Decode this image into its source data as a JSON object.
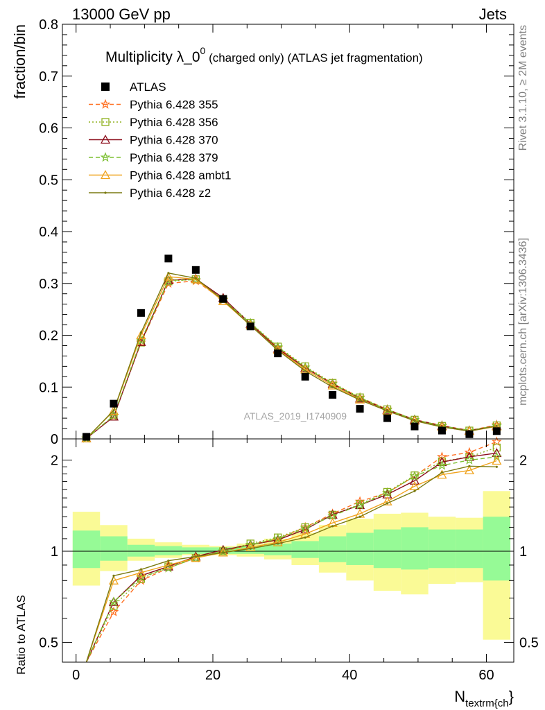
{
  "header": {
    "energy_label": "13000 GeV pp",
    "category_label": "Jets"
  },
  "side": {
    "rivet_label": "Rivet 3.1.10, ≥ 2M events",
    "source_label": "mcplots.cern.ch [arXiv:1306.3436]"
  },
  "analysis_label": "ATLAS_2019_I1740909",
  "colors": {
    "p355": "#ff6e1f",
    "p356": "#8fb01e",
    "p370": "#8b0c1a",
    "p379": "#7cbf30",
    "ambt1": "#f0a31e",
    "z2": "#7a7a10",
    "band_inner": "#96fa96",
    "band_outer": "#fafa96"
  },
  "chart_data": [
    {
      "panel": "main",
      "type": "line",
      "title_main": "Multiplicity λ_0",
      "title_sup": "0",
      "title_rest": " (charged only) (ATLAS jet fragmentation)",
      "ylabel": "fraction/bin",
      "xlim": [
        -2,
        64
      ],
      "ylim": [
        0,
        0.8
      ],
      "x_ticks": [
        0,
        20,
        40,
        60
      ],
      "y_ticks": [
        "0",
        "0.1",
        "0.2",
        "0.3",
        "0.4",
        "0.5",
        "0.6",
        "0.7",
        "0.8"
      ],
      "legend_position": "top-left",
      "x": [
        1.5,
        5.5,
        9.5,
        13.5,
        17.5,
        21.5,
        25.5,
        29.5,
        33.5,
        37.5,
        41.5,
        45.5,
        49.5,
        53.5,
        57.5,
        61.5
      ],
      "data": {
        "name": "ATLAS",
        "values": [
          0.004,
          0.068,
          0.243,
          0.348,
          0.326,
          0.27,
          0.217,
          0.165,
          0.12,
          0.085,
          0.058,
          0.04,
          0.024,
          0.016,
          0.009,
          0.015
        ]
      },
      "series": [
        {
          "key": "p355",
          "name": "Pythia 6.428 355",
          "style": "dashed",
          "marker": "star",
          "values": [
            0.001,
            0.044,
            0.186,
            0.3,
            0.305,
            0.268,
            0.223,
            0.176,
            0.138,
            0.107,
            0.08,
            0.057,
            0.037,
            0.026,
            0.016,
            0.027
          ]
        },
        {
          "key": "p356",
          "name": "Pythia 6.428 356",
          "style": "dotted",
          "marker": "square",
          "values": [
            0.001,
            0.043,
            0.186,
            0.304,
            0.308,
            0.27,
            0.224,
            0.178,
            0.14,
            0.108,
            0.08,
            0.057,
            0.037,
            0.025,
            0.016,
            0.026
          ]
        },
        {
          "key": "p370",
          "name": "Pythia 6.428 370",
          "style": "solid",
          "marker": "triangle",
          "values": [
            0.001,
            0.043,
            0.187,
            0.306,
            0.309,
            0.272,
            0.222,
            0.174,
            0.137,
            0.106,
            0.078,
            0.056,
            0.037,
            0.025,
            0.016,
            0.025
          ]
        },
        {
          "key": "p379",
          "name": "Pythia 6.428 379",
          "style": "dashed",
          "marker": "star",
          "values": [
            0.001,
            0.045,
            0.19,
            0.306,
            0.307,
            0.269,
            0.223,
            0.177,
            0.138,
            0.106,
            0.079,
            0.056,
            0.037,
            0.025,
            0.016,
            0.025
          ]
        },
        {
          "key": "ambt1",
          "name": "Pythia 6.428 ambt1",
          "style": "solid",
          "marker": "triangle",
          "values": [
            0.001,
            0.054,
            0.2,
            0.313,
            0.308,
            0.266,
            0.219,
            0.172,
            0.134,
            0.103,
            0.076,
            0.054,
            0.035,
            0.023,
            0.015,
            0.024
          ]
        },
        {
          "key": "z2",
          "name": "Pythia 6.428 z2",
          "style": "solid",
          "marker": "dot",
          "values": [
            0.001,
            0.055,
            0.205,
            0.32,
            0.31,
            0.268,
            0.219,
            0.171,
            0.131,
            0.1,
            0.075,
            0.054,
            0.035,
            0.023,
            0.015,
            0.025
          ]
        }
      ]
    },
    {
      "panel": "ratio",
      "type": "line",
      "ylabel": "Ratio to ATLAS",
      "xlabel_main": "N",
      "xlabel_sub": "textrm{ch",
      "xlabel_end": "}",
      "yscale": "log",
      "xlim": [
        -2,
        64
      ],
      "ylim": [
        0.43,
        2.35
      ],
      "y_ticks": [
        "0.5",
        "1",
        "2"
      ],
      "x_ticks": [
        "0",
        "20",
        "40",
        "60"
      ],
      "x": [
        1.5,
        5.5,
        9.5,
        13.5,
        17.5,
        21.5,
        25.5,
        29.5,
        33.5,
        37.5,
        41.5,
        45.5,
        49.5,
        53.5,
        57.5,
        61.5
      ],
      "bin_edges": [
        -0.5,
        3.5,
        7.5,
        11.5,
        15.5,
        19.5,
        23.5,
        27.5,
        31.5,
        35.5,
        39.5,
        43.5,
        47.5,
        51.5,
        55.5,
        59.5,
        63.5
      ],
      "band_inner": [
        [
          0.88,
          1.17
        ],
        [
          0.93,
          1.12
        ],
        [
          0.96,
          1.05
        ],
        [
          0.97,
          1.04
        ],
        [
          0.98,
          1.03
        ],
        [
          0.98,
          1.03
        ],
        [
          0.98,
          1.04
        ],
        [
          0.97,
          1.06
        ],
        [
          0.95,
          1.08
        ],
        [
          0.92,
          1.12
        ],
        [
          0.9,
          1.15
        ],
        [
          0.88,
          1.18
        ],
        [
          0.87,
          1.2
        ],
        [
          0.88,
          1.18
        ],
        [
          0.88,
          1.18
        ],
        [
          0.8,
          1.3
        ]
      ],
      "band_outer": [
        [
          0.77,
          1.35
        ],
        [
          0.86,
          1.22
        ],
        [
          0.93,
          1.1
        ],
        [
          0.95,
          1.07
        ],
        [
          0.97,
          1.05
        ],
        [
          0.97,
          1.04
        ],
        [
          0.96,
          1.06
        ],
        [
          0.94,
          1.1
        ],
        [
          0.9,
          1.15
        ],
        [
          0.85,
          1.22
        ],
        [
          0.8,
          1.28
        ],
        [
          0.74,
          1.33
        ],
        [
          0.72,
          1.34
        ],
        [
          0.78,
          1.3
        ],
        [
          0.79,
          1.29
        ],
        [
          0.51,
          1.58
        ]
      ],
      "series": [
        {
          "key": "p355",
          "values": [
            0.3,
            0.63,
            0.8,
            0.88,
            0.95,
            1.0,
            1.05,
            1.1,
            1.2,
            1.33,
            1.46,
            1.56,
            1.77,
            2.05,
            2.12,
            2.3
          ]
        },
        {
          "key": "p356",
          "values": [
            0.3,
            0.66,
            0.81,
            0.89,
            0.95,
            1.0,
            1.06,
            1.11,
            1.2,
            1.32,
            1.43,
            1.57,
            1.78,
            1.98,
            2.05,
            2.2
          ]
        },
        {
          "key": "p370",
          "values": [
            0.3,
            0.68,
            0.83,
            0.89,
            0.96,
            1.01,
            1.05,
            1.09,
            1.18,
            1.32,
            1.42,
            1.54,
            1.71,
            1.97,
            2.05,
            2.11
          ]
        },
        {
          "key": "p379",
          "values": [
            0.3,
            0.68,
            0.82,
            0.88,
            0.95,
            1.0,
            1.05,
            1.1,
            1.19,
            1.31,
            1.42,
            1.56,
            1.77,
            1.92,
            2.0,
            2.05
          ]
        },
        {
          "key": "ambt1",
          "values": [
            0.3,
            0.8,
            0.85,
            0.9,
            0.95,
            0.99,
            1.03,
            1.07,
            1.14,
            1.24,
            1.33,
            1.46,
            1.64,
            1.79,
            1.85,
            1.99
          ]
        },
        {
          "key": "z2",
          "values": [
            0.3,
            0.83,
            0.87,
            0.93,
            0.96,
            0.99,
            1.02,
            1.06,
            1.11,
            1.21,
            1.3,
            1.44,
            1.58,
            1.82,
            1.91,
            1.9
          ]
        }
      ]
    }
  ]
}
